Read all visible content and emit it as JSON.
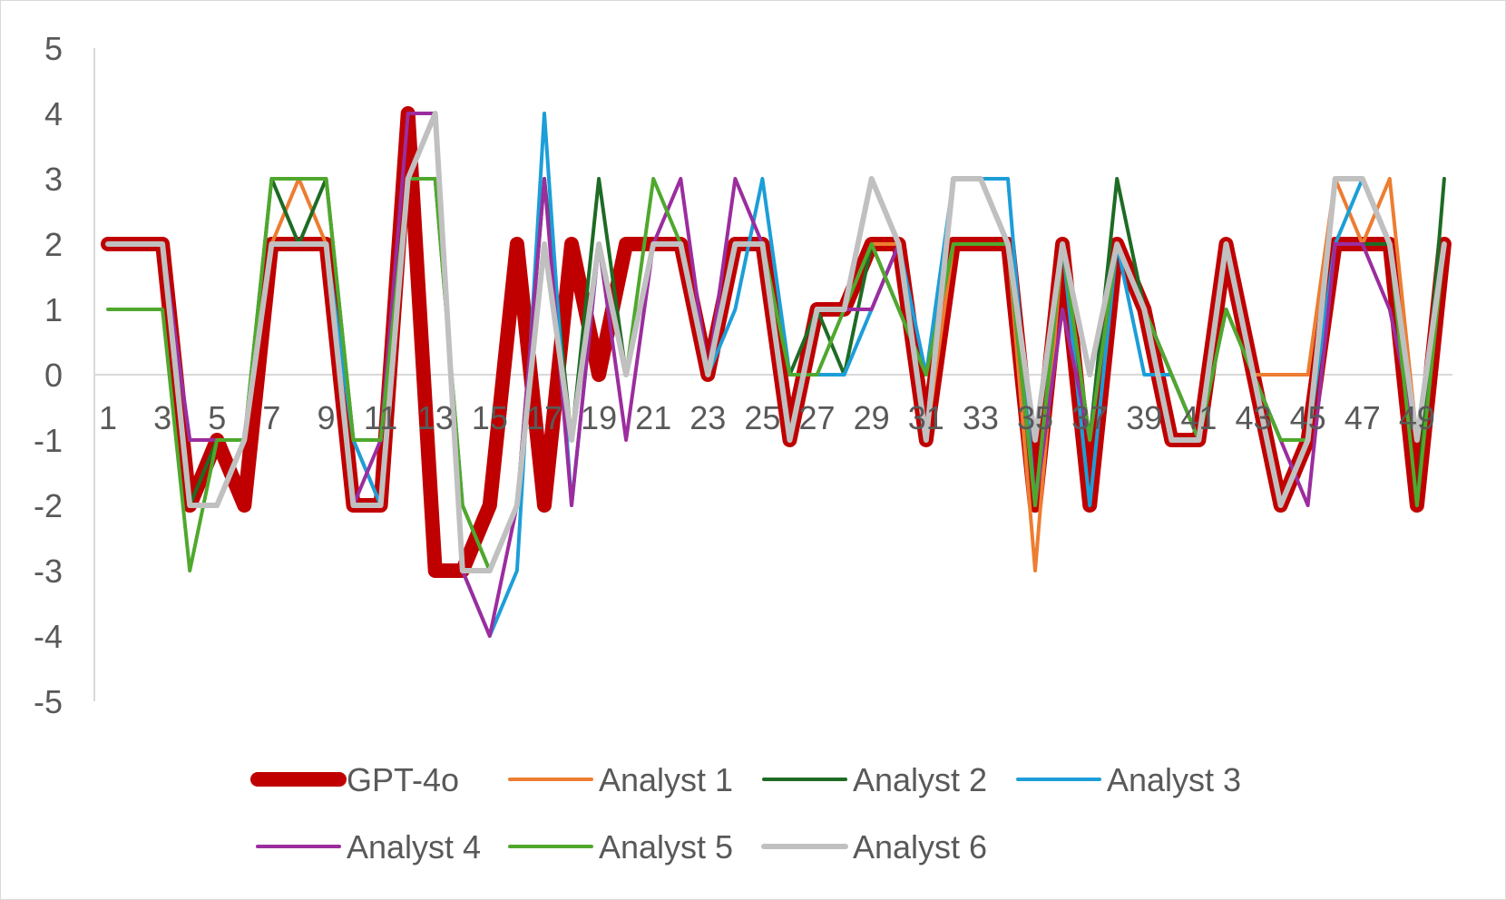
{
  "chart_data": {
    "type": "line",
    "title": "",
    "xlabel": "",
    "ylabel": "",
    "ylim": [
      -5,
      5
    ],
    "yticks": [
      5,
      4,
      3,
      2,
      1,
      0,
      -1,
      -2,
      -3,
      -4,
      -5
    ],
    "x": [
      1,
      2,
      3,
      4,
      5,
      6,
      7,
      8,
      9,
      10,
      11,
      12,
      13,
      14,
      15,
      16,
      17,
      18,
      19,
      20,
      21,
      22,
      23,
      24,
      25,
      26,
      27,
      28,
      29,
      30,
      31,
      32,
      33,
      34,
      35,
      36,
      37,
      38,
      39,
      40,
      41,
      42,
      43,
      44,
      45,
      46,
      47,
      48,
      49,
      50
    ],
    "xtick_labels": [
      "1",
      "3",
      "5",
      "7",
      "9",
      "11",
      "13",
      "15",
      "17",
      "19",
      "21",
      "23",
      "25",
      "27",
      "29",
      "31",
      "33",
      "35",
      "37",
      "39",
      "41",
      "43",
      "45",
      "47",
      "49"
    ],
    "grid": false,
    "legend_position": "bottom",
    "series": [
      {
        "name": "GPT-4o",
        "color": "#c00000",
        "values": [
          2,
          2,
          2,
          -2,
          -1,
          -2,
          2,
          2,
          2,
          -2,
          -2,
          4,
          -3,
          -3,
          -2,
          2,
          -2,
          2,
          0,
          2,
          2,
          2,
          0,
          2,
          2,
          -1,
          1,
          1,
          2,
          2,
          -1,
          2,
          2,
          2,
          -2,
          2,
          -2,
          2,
          1,
          -1,
          -1,
          2,
          0,
          -2,
          -1,
          2,
          2,
          2,
          -2,
          2
        ]
      },
      {
        "name": "Analyst 1",
        "color": "#ed7d31",
        "values": [
          2,
          2,
          2,
          -2,
          -2,
          -1,
          2,
          3,
          2,
          -1,
          -2,
          3,
          4,
          -3,
          -3,
          -2,
          2,
          -1,
          2,
          0,
          2,
          2,
          0,
          2,
          2,
          -1,
          1,
          1,
          2,
          2,
          -1,
          2,
          2,
          2,
          -3,
          2,
          -1,
          2,
          1,
          0,
          -1,
          2,
          0,
          0,
          0,
          3,
          2,
          3,
          -1,
          2
        ]
      },
      {
        "name": "Analyst 2",
        "color": "#1e6b24",
        "values": [
          2,
          2,
          2,
          -2,
          -1,
          -1,
          3,
          2,
          3,
          -1,
          -1,
          3,
          3,
          -2,
          -3,
          -2,
          3,
          -1,
          3,
          0,
          2,
          2,
          0,
          2,
          2,
          0,
          1,
          0,
          2,
          1,
          0,
          2,
          2,
          2,
          -2,
          2,
          -1,
          3,
          1,
          0,
          -1,
          1,
          0,
          -1,
          -1,
          2,
          2,
          2,
          -2,
          3
        ]
      },
      {
        "name": "Analyst 3",
        "color": "#1c9ed8",
        "values": [
          2,
          2,
          2,
          -1,
          -1,
          -1,
          2,
          2,
          2,
          -1,
          -2,
          3,
          4,
          -3,
          -4,
          -3,
          4,
          -2,
          2,
          0,
          2,
          2,
          0,
          1,
          3,
          0,
          0,
          0,
          1,
          2,
          0,
          3,
          3,
          3,
          -2,
          2,
          -2,
          2,
          0,
          0,
          -1,
          2,
          0,
          -1,
          -1,
          2,
          3,
          2,
          -1,
          2
        ]
      },
      {
        "name": "Analyst 4",
        "color": "#9b2d9e",
        "values": [
          2,
          2,
          2,
          -1,
          -1,
          -1,
          2,
          2,
          2,
          -2,
          -1,
          4,
          4,
          -3,
          -4,
          -2,
          3,
          -2,
          2,
          -1,
          2,
          3,
          0,
          3,
          2,
          -1,
          1,
          1,
          1,
          2,
          -1,
          3,
          3,
          2,
          -2,
          1,
          -1,
          2,
          1,
          0,
          -1,
          2,
          0,
          -1,
          -2,
          2,
          2,
          1,
          -1,
          2
        ]
      },
      {
        "name": "Analyst 5",
        "color": "#4fa82d",
        "values": [
          1,
          1,
          1,
          -3,
          -1,
          -1,
          3,
          3,
          3,
          -1,
          -1,
          3,
          3,
          -2,
          -3,
          -2,
          2,
          -1,
          2,
          0,
          3,
          2,
          0,
          2,
          2,
          0,
          0,
          1,
          2,
          1,
          0,
          2,
          2,
          2,
          -2,
          2,
          -1,
          2,
          1,
          0,
          -1,
          1,
          0,
          -1,
          -1,
          3,
          3,
          2,
          -2,
          2
        ]
      },
      {
        "name": "Analyst 6",
        "color": "#c0c0c0",
        "values": [
          2,
          2,
          2,
          -2,
          -2,
          -1,
          2,
          2,
          2,
          -2,
          -2,
          3,
          4,
          -3,
          -3,
          -2,
          2,
          -1,
          2,
          0,
          2,
          2,
          0,
          2,
          2,
          -1,
          1,
          1,
          3,
          2,
          -1,
          3,
          3,
          2,
          -1,
          2,
          0,
          2,
          1,
          -1,
          -1,
          2,
          0,
          -2,
          -1,
          3,
          3,
          2,
          -1,
          2
        ]
      }
    ]
  }
}
